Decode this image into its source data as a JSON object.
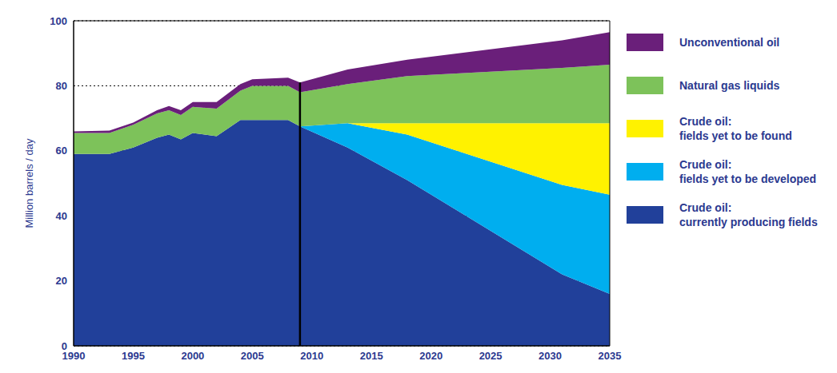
{
  "chart_data": {
    "type": "area",
    "stacked": true,
    "grid": true,
    "legend": "right",
    "y_label": "Million barrels / day",
    "x": [
      1990,
      1993,
      1995,
      1997,
      1998,
      1999,
      2000,
      2002,
      2004,
      2005,
      2008,
      2009,
      2013,
      2018,
      2031,
      2035
    ],
    "xlim": [
      1990,
      2035
    ],
    "xticks": [
      1990,
      1995,
      2000,
      2005,
      2010,
      2015,
      2020,
      2025,
      2030,
      2035
    ],
    "ylim": [
      0,
      100
    ],
    "yticks": [
      0,
      20,
      40,
      60,
      80,
      100
    ],
    "vline": 2009,
    "series": [
      {
        "name": "Crude oil: currently producing fields",
        "color": "#21409a",
        "values": [
          59,
          59,
          61,
          64,
          65,
          63.5,
          65.5,
          64.5,
          69.5,
          69.5,
          69.5,
          67.5,
          61,
          51,
          22,
          16
        ]
      },
      {
        "name": "Crude oil: fields yet to be developed",
        "color": "#00aeef",
        "values": [
          0,
          0,
          0,
          0,
          0,
          0,
          0,
          0,
          0,
          0,
          0,
          0,
          7.5,
          14,
          27.5,
          30.5
        ]
      },
      {
        "name": "Crude oil: fields yet to be found",
        "color": "#fff200",
        "values": [
          0,
          0,
          0,
          0,
          0,
          0,
          0,
          0,
          0,
          0,
          0,
          0,
          0,
          3.5,
          19,
          22
        ]
      },
      {
        "name": "Natural gas liquids",
        "color": "#7dc25a",
        "values": [
          6.5,
          6.5,
          7,
          7.5,
          7.5,
          7.5,
          8,
          8.5,
          9,
          10.5,
          10.5,
          10.5,
          12,
          14.5,
          17,
          18
        ]
      },
      {
        "name": "Unconventional oil",
        "color": "#6a1f7a",
        "values": [
          0.5,
          0.7,
          0.7,
          1,
          1.3,
          1.5,
          1.5,
          2,
          2,
          2,
          2.5,
          3,
          4.5,
          5,
          8.5,
          10
        ]
      }
    ]
  }
}
